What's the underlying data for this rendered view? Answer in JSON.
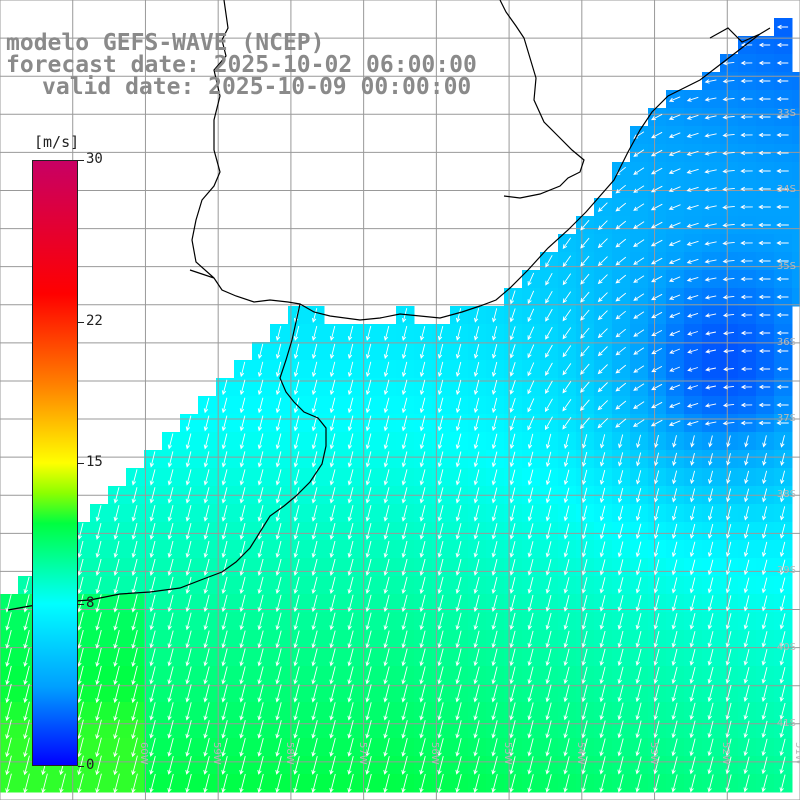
{
  "title": {
    "line1": "modelo GEFS-WAVE (NCEP)",
    "line2": "forecast date: 2025-10-02 06:00:00",
    "line3": "valid date: 2025-10-09 00:00:00"
  },
  "colorbar": {
    "unit": "[m/s]",
    "ticks": [
      {
        "value": 30,
        "label": "30"
      },
      {
        "value": 22,
        "label": "22"
      },
      {
        "value": 15,
        "label": "15"
      },
      {
        "value": 8,
        "label": "8"
      },
      {
        "value": 0,
        "label": "0"
      }
    ],
    "range": [
      0,
      30
    ],
    "colors": [
      "#0000ff",
      "#00a0ff",
      "#00ffff",
      "#00ff40",
      "#8cff00",
      "#ffff00",
      "#ff8000",
      "#ff0000",
      "#c80064"
    ]
  },
  "map": {
    "lon_range": [
      -62,
      -51
    ],
    "lat_range": [
      -42,
      -31.5
    ],
    "lat_labels": [
      "33S",
      "34S",
      "35S",
      "36S",
      "37S",
      "38S",
      "39S",
      "40S",
      "41S"
    ],
    "lon_labels": [
      "61W",
      "60W",
      "59W",
      "58W",
      "57W",
      "56W",
      "55W",
      "54W",
      "53W",
      "52W",
      "51W"
    ],
    "land_color": "#ffffff",
    "grid_color": "#999999",
    "coast_color": "#000000",
    "arrow_color": "#ffffff"
  }
}
